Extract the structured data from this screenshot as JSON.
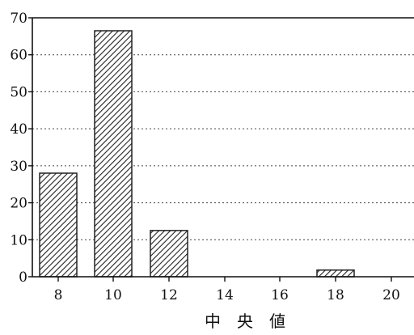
{
  "chart_data": {
    "type": "bar",
    "categories": [
      "8",
      "10",
      "12",
      "14",
      "16",
      "18",
      "20"
    ],
    "values": [
      28,
      66.5,
      12.5,
      0,
      0,
      1.8,
      0
    ],
    "xlabel": "中　央　値",
    "ylabel": "",
    "ylim": [
      0,
      70
    ],
    "yticks": [
      "0",
      "10",
      "20",
      "30",
      "40",
      "50",
      "60",
      "70"
    ],
    "xticks": [
      "8",
      "10",
      "12",
      "14",
      "16",
      "18",
      "20"
    ],
    "grid": "horizontal dotted",
    "bar_fill": "diagonal hatch",
    "colors": {
      "bar_stroke": "#222222",
      "hatch": "#222222",
      "axis": "#111111",
      "grid": "#444444"
    }
  }
}
